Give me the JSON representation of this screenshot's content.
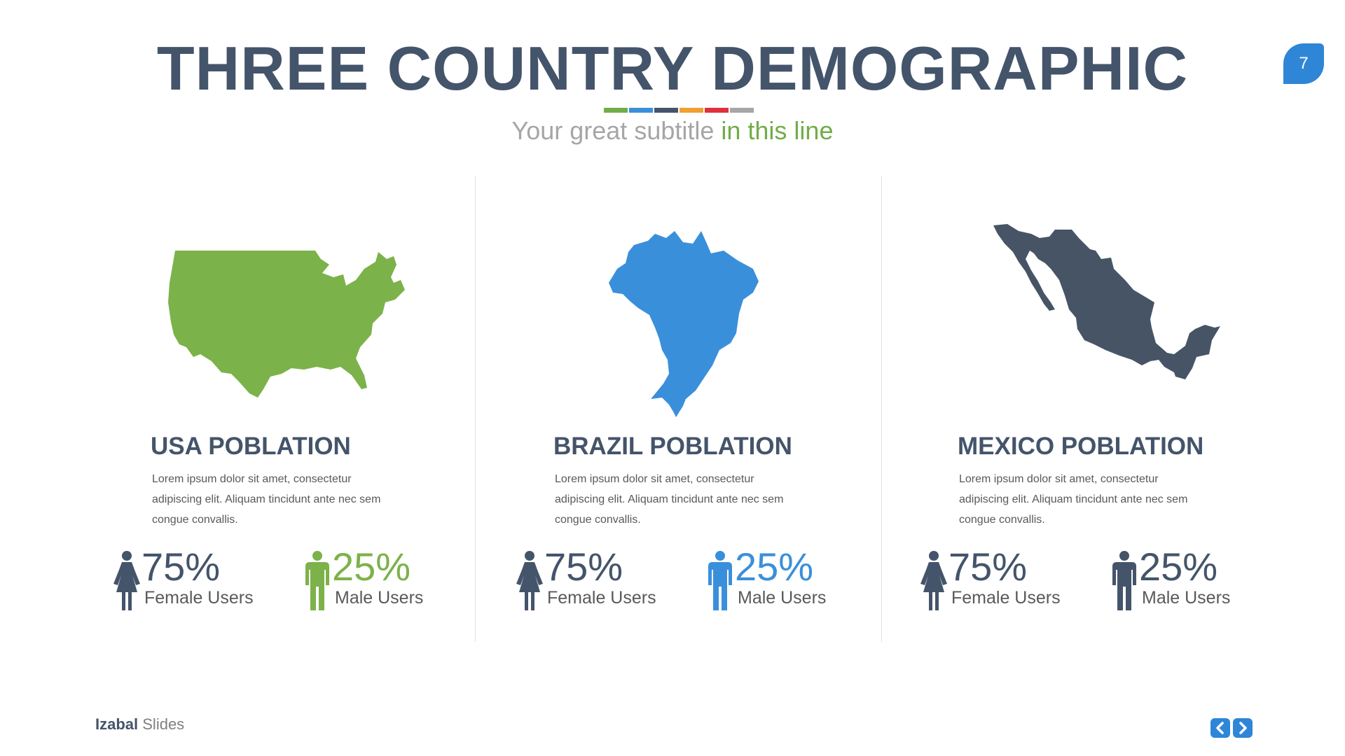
{
  "slide": {
    "title": "THREE COUNTRY DEMOGRAPHIC",
    "subtitle_plain": "Your great subtitle ",
    "subtitle_highlight": "in this line",
    "page_number": "7",
    "color_bar": [
      "#70ad47",
      "#3a8fdb",
      "#44546a",
      "#f0a030",
      "#e0303c",
      "#a6a6a6"
    ]
  },
  "countries": [
    {
      "title": "USA POBLATION",
      "description": "Lorem ipsum dolor sit amet, consectetur adipiscing elit. Aliquam tincidunt ante nec sem congue convallis.",
      "map_color": "#7cb24a",
      "female": {
        "value": "75%",
        "label": "Female Users",
        "icon": "female-icon",
        "color": "#44546a"
      },
      "male": {
        "value": "25%",
        "label": "Male Users",
        "icon": "male-icon",
        "color": "#7cb24a"
      }
    },
    {
      "title": "BRAZIL POBLATION",
      "description": "Lorem ipsum dolor sit amet, consectetur adipiscing elit. Aliquam tincidunt ante nec sem congue convallis.",
      "map_color": "#3a8fdb",
      "female": {
        "value": "75%",
        "label": "Female Users",
        "icon": "female-icon",
        "color": "#44546a"
      },
      "male": {
        "value": "25%",
        "label": "Male Users",
        "icon": "male-icon",
        "color": "#3a8fdb"
      }
    },
    {
      "title": "MEXICO POBLATION",
      "description": "Lorem ipsum dolor sit amet, consectetur adipiscing elit. Aliquam tincidunt ante nec sem congue convallis.",
      "map_color": "#465466",
      "female": {
        "value": "75%",
        "label": "Female Users",
        "icon": "female-icon",
        "color": "#44546a"
      },
      "male": {
        "value": "25%",
        "label": "Male Users",
        "icon": "male-icon",
        "color": "#44546a"
      }
    }
  ],
  "footer": {
    "brand_bold": "Izabal",
    "brand_light": " Slides",
    "prev_icon": "chevron-left-icon",
    "next_icon": "chevron-right-icon"
  }
}
